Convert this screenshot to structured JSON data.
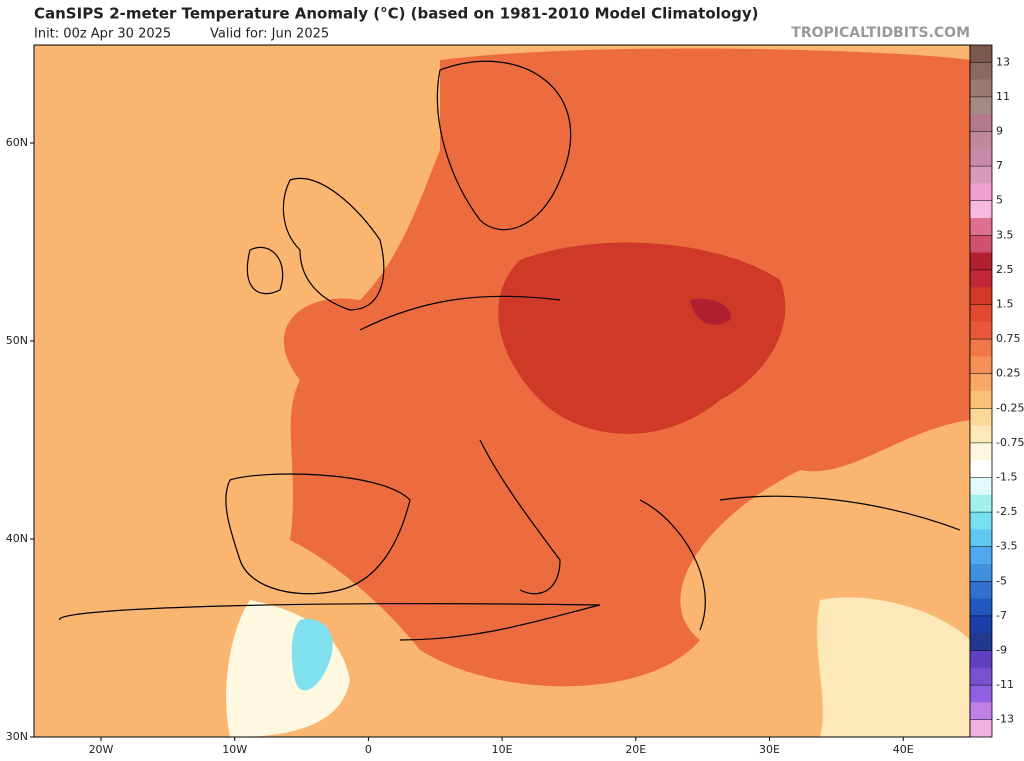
{
  "header": {
    "title": "CanSIPS 2-meter Temperature Anomaly (°C) (based on 1981-2010 Model Climatology)",
    "init": "Init: 00z Apr 30 2025",
    "valid": "Valid for: Jun 2025",
    "site": "TROPICALTIDBITS.COM"
  },
  "axes": {
    "lat_labels": [
      "60N",
      "50N",
      "40N",
      "30N"
    ],
    "lon_labels": [
      "20W",
      "10W",
      "0",
      "10E",
      "20E",
      "30E",
      "40E"
    ]
  },
  "colorbar": {
    "labels": [
      "13",
      "11",
      "9",
      "7",
      "5",
      "3.5",
      "2.5",
      "1.5",
      "0.75",
      "0.25",
      "-0.25",
      "-0.75",
      "-1.5",
      "-2.5",
      "-3.5",
      "-5",
      "-7",
      "-9",
      "-11",
      "-13"
    ],
    "colors": [
      "#7a5a4e",
      "#8a6a60",
      "#9a7a72",
      "#a88a84",
      "#b27a8c",
      "#c08a9c",
      "#c98aaa",
      "#d89ab8",
      "#f0a0d0",
      "#f8b8e0",
      "#e07090",
      "#d05070",
      "#b02030",
      "#c02838",
      "#d03828",
      "#e04830",
      "#e85838",
      "#f07848",
      "#f49058",
      "#f8a868",
      "#fbc078",
      "#fcd898",
      "#fde8b8",
      "#fff8e0",
      "#ffffff",
      "#e0fafa",
      "#a0f0f0",
      "#78e0f0",
      "#60c8f0",
      "#50a8f0",
      "#4090e0",
      "#3070d0",
      "#2058c0",
      "#1840a8",
      "#203890",
      "#6040c0",
      "#7850d0",
      "#9060e0",
      "#c080e8",
      "#f0b0e0"
    ]
  }
}
